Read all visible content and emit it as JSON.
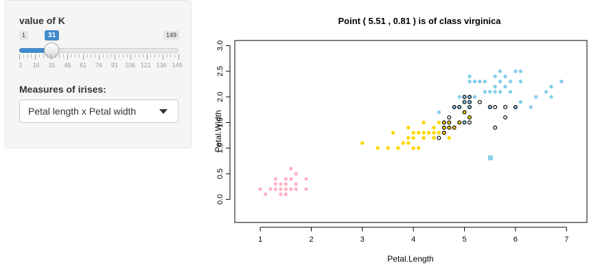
{
  "sidebar": {
    "k_label": "value of K",
    "slider": {
      "min": 1,
      "max": 149,
      "value": 31,
      "min_label": "1",
      "max_label": "149",
      "value_label": "31",
      "tick_labels": [
        "1",
        "16",
        "31",
        "46",
        "61",
        "76",
        "91",
        "106",
        "121",
        "136",
        "149"
      ]
    },
    "measures_label": "Measures of irises:",
    "measures_select": {
      "value": "Petal length x Petal width"
    }
  },
  "colors": {
    "setosa": "#ffb3c6",
    "versicolor": "#ffd700",
    "virginica": "#87ceeb",
    "accent": "#428bca"
  },
  "chart_data": {
    "type": "scatter",
    "title": "Point ( 5.51 , 0.81 ) is of class virginica",
    "xlabel": "Petal.Length",
    "ylabel": "Petal.Width",
    "xlim": [
      0.5,
      7.4
    ],
    "ylim": [
      -0.45,
      3.1
    ],
    "xticks": [
      "1",
      "2",
      "3",
      "4",
      "5",
      "6",
      "7"
    ],
    "yticks": [
      "0.0",
      "0.5",
      "1.0",
      "1.5",
      "2.0",
      "2.5",
      "3.0"
    ],
    "grid": false,
    "query_point": {
      "x": 5.51,
      "y": 0.81,
      "class": "virginica"
    },
    "series": [
      {
        "class": "setosa",
        "points": [
          [
            1.0,
            0.2
          ],
          [
            1.1,
            0.1
          ],
          [
            1.2,
            0.2
          ],
          [
            1.3,
            0.2
          ],
          [
            1.3,
            0.3
          ],
          [
            1.3,
            0.4
          ],
          [
            1.4,
            0.1
          ],
          [
            1.4,
            0.2
          ],
          [
            1.4,
            0.3
          ],
          [
            1.5,
            0.1
          ],
          [
            1.5,
            0.2
          ],
          [
            1.5,
            0.3
          ],
          [
            1.5,
            0.4
          ],
          [
            1.6,
            0.2
          ],
          [
            1.6,
            0.4
          ],
          [
            1.6,
            0.6
          ],
          [
            1.7,
            0.2
          ],
          [
            1.7,
            0.3
          ],
          [
            1.7,
            0.5
          ],
          [
            1.9,
            0.2
          ],
          [
            1.9,
            0.4
          ]
        ]
      },
      {
        "class": "versicolor",
        "points": [
          [
            3.0,
            1.1
          ],
          [
            3.3,
            1.0
          ],
          [
            3.5,
            1.0
          ],
          [
            3.6,
            1.3
          ],
          [
            3.7,
            1.0
          ],
          [
            3.8,
            1.1
          ],
          [
            3.9,
            1.1
          ],
          [
            3.9,
            1.4
          ],
          [
            3.9,
            1.2
          ],
          [
            4.0,
            1.0
          ],
          [
            4.0,
            1.2
          ],
          [
            4.0,
            1.3
          ],
          [
            4.1,
            1.0
          ],
          [
            4.1,
            1.3
          ],
          [
            4.2,
            1.2
          ],
          [
            4.2,
            1.3
          ],
          [
            4.2,
            1.5
          ],
          [
            4.3,
            1.3
          ],
          [
            4.4,
            1.2
          ],
          [
            4.4,
            1.3
          ],
          [
            4.4,
            1.4
          ],
          [
            4.5,
            1.3
          ],
          [
            4.5,
            1.5
          ],
          [
            4.6,
            1.4
          ],
          [
            4.6,
            1.5
          ],
          [
            4.6,
            1.3
          ],
          [
            4.7,
            1.2
          ],
          [
            4.7,
            1.4
          ],
          [
            4.7,
            1.5
          ],
          [
            4.8,
            1.4
          ],
          [
            4.9,
            1.5
          ],
          [
            5.0,
            1.7
          ],
          [
            5.1,
            1.6
          ]
        ]
      },
      {
        "class": "virginica",
        "points": [
          [
            4.5,
            1.7
          ],
          [
            4.8,
            1.8
          ],
          [
            4.9,
            1.8
          ],
          [
            4.9,
            2.0
          ],
          [
            5.0,
            2.0
          ],
          [
            5.0,
            1.9
          ],
          [
            5.0,
            1.5
          ],
          [
            5.1,
            2.0
          ],
          [
            5.1,
            2.3
          ],
          [
            5.1,
            2.4
          ],
          [
            5.1,
            1.9
          ],
          [
            5.1,
            1.8
          ],
          [
            5.2,
            2.0
          ],
          [
            5.2,
            2.3
          ],
          [
            5.3,
            2.3
          ],
          [
            5.4,
            2.1
          ],
          [
            5.4,
            2.3
          ],
          [
            5.5,
            2.1
          ],
          [
            5.5,
            1.8
          ],
          [
            5.6,
            2.1
          ],
          [
            5.6,
            2.2
          ],
          [
            5.6,
            2.4
          ],
          [
            5.7,
            2.1
          ],
          [
            5.7,
            2.3
          ],
          [
            5.7,
            2.5
          ],
          [
            5.8,
            2.2
          ],
          [
            5.8,
            2.4
          ],
          [
            5.9,
            2.1
          ],
          [
            5.9,
            2.3
          ],
          [
            6.0,
            2.5
          ],
          [
            6.0,
            1.8
          ],
          [
            6.1,
            2.3
          ],
          [
            6.1,
            2.5
          ],
          [
            6.1,
            1.9
          ],
          [
            6.3,
            1.8
          ],
          [
            6.4,
            2.0
          ],
          [
            6.6,
            2.1
          ],
          [
            6.7,
            2.0
          ],
          [
            6.7,
            2.2
          ],
          [
            6.9,
            2.3
          ]
        ]
      }
    ],
    "outlined_neighbors": [
      [
        4.5,
        1.2
      ],
      [
        4.6,
        1.3
      ],
      [
        4.6,
        1.4
      ],
      [
        4.6,
        1.5
      ],
      [
        4.7,
        1.4
      ],
      [
        4.7,
        1.5
      ],
      [
        4.7,
        1.6
      ],
      [
        4.8,
        1.4
      ],
      [
        4.8,
        1.8
      ],
      [
        4.9,
        1.5
      ],
      [
        4.9,
        1.8
      ],
      [
        5.0,
        1.5
      ],
      [
        5.0,
        1.7
      ],
      [
        5.0,
        1.9
      ],
      [
        5.0,
        2.0
      ],
      [
        5.1,
        1.5
      ],
      [
        5.1,
        1.6
      ],
      [
        5.1,
        1.8
      ],
      [
        5.1,
        1.9
      ],
      [
        5.1,
        2.0
      ],
      [
        5.3,
        1.9
      ],
      [
        5.5,
        1.8
      ],
      [
        5.6,
        1.4
      ],
      [
        5.6,
        1.8
      ],
      [
        5.8,
        1.6
      ],
      [
        5.8,
        1.8
      ],
      [
        6.0,
        1.8
      ]
    ]
  }
}
